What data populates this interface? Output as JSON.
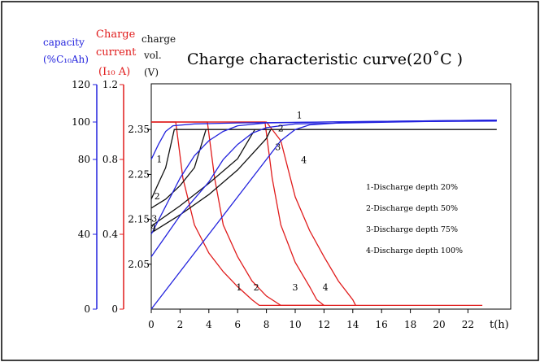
{
  "title": "Charge characteristic curve(20˚C )",
  "axes": {
    "capacity": {
      "label1": "capacity",
      "label2": "(%C₁₀Ah)",
      "color": "#2222dd",
      "ticks": [
        "0",
        "40",
        "80",
        "100",
        "120"
      ]
    },
    "current": {
      "label1": "Charge",
      "label2": "current",
      "label3": "(I₁₀ A)",
      "color": "#e01b1b",
      "ticks": [
        "0",
        "0.4",
        "0.8",
        "1.2"
      ]
    },
    "voltage": {
      "label1": "charge",
      "label2": "vol.",
      "label3": "(V)",
      "color": "#111111",
      "ticks": [
        "2.05",
        "2.15",
        "2.25",
        "2.35"
      ]
    },
    "time": {
      "label": "t(h)",
      "ticks": [
        "0",
        "2",
        "4",
        "6",
        "8",
        "10",
        "12",
        "14",
        "16",
        "18",
        "20",
        "22"
      ]
    }
  },
  "legend": [
    {
      "num": "1",
      "text": "Discharge depth 20%"
    },
    {
      "num": "2",
      "text": "Discharge depth 50%"
    },
    {
      "num": "3",
      "text": "Discharge depth 75%"
    },
    {
      "num": "4",
      "text": "Discharge depth 100%"
    }
  ],
  "curve_labels": {
    "capacity": [
      "1",
      "2",
      "3",
      "4"
    ],
    "current": [
      "1",
      "2",
      "3",
      "4"
    ],
    "voltage": [
      "1",
      "2",
      "3",
      "4"
    ]
  },
  "chart_data": {
    "type": "line",
    "title": "Charge characteristic curve(20˚C )",
    "xlabel": "t(h)",
    "xlim": [
      0,
      24
    ],
    "colors": {
      "capacity": "#2222dd",
      "current": "#e01b1b",
      "voltage": "#111111"
    },
    "axes_ranges": {
      "capacity_pct": [
        0,
        120
      ],
      "current_I10A": [
        0,
        1.2
      ],
      "voltage_V": [
        1.95,
        2.45
      ]
    },
    "capacity_series": [
      {
        "name": "1",
        "points": [
          [
            0,
            80
          ],
          [
            0.5,
            88
          ],
          [
            1,
            95
          ],
          [
            1.5,
            98
          ],
          [
            3,
            99
          ],
          [
            6,
            99.5
          ],
          [
            12,
            100
          ],
          [
            24,
            101
          ]
        ]
      },
      {
        "name": "2",
        "points": [
          [
            0,
            40
          ],
          [
            1,
            55
          ],
          [
            2,
            70
          ],
          [
            3,
            82
          ],
          [
            4,
            90
          ],
          [
            5,
            95
          ],
          [
            6,
            98
          ],
          [
            8,
            99.5
          ],
          [
            12,
            100
          ],
          [
            24,
            101
          ]
        ]
      },
      {
        "name": "3",
        "points": [
          [
            0,
            28
          ],
          [
            2,
            50
          ],
          [
            4,
            68
          ],
          [
            5,
            80
          ],
          [
            6,
            88
          ],
          [
            7,
            94
          ],
          [
            8,
            97
          ],
          [
            10,
            99
          ],
          [
            24,
            101
          ]
        ]
      },
      {
        "name": "4",
        "points": [
          [
            0,
            0
          ],
          [
            2,
            20
          ],
          [
            4,
            40
          ],
          [
            6,
            60
          ],
          [
            7,
            70
          ],
          [
            8,
            80
          ],
          [
            9,
            90
          ],
          [
            10,
            96
          ],
          [
            11,
            98.5
          ],
          [
            14,
            100
          ],
          [
            24,
            100.5
          ]
        ]
      }
    ],
    "current_series": [
      {
        "name": "1",
        "points": [
          [
            0,
            1.0
          ],
          [
            1.7,
            1.0
          ],
          [
            2.2,
            0.7
          ],
          [
            3,
            0.45
          ],
          [
            4,
            0.3
          ],
          [
            5,
            0.2
          ],
          [
            6,
            0.12
          ],
          [
            7,
            0.05
          ],
          [
            7.5,
            0.02
          ],
          [
            12,
            0.02
          ],
          [
            23,
            0.02
          ]
        ]
      },
      {
        "name": "2",
        "points": [
          [
            0,
            1.0
          ],
          [
            3.9,
            1.0
          ],
          [
            4.4,
            0.7
          ],
          [
            5,
            0.45
          ],
          [
            6,
            0.28
          ],
          [
            7,
            0.15
          ],
          [
            8,
            0.07
          ],
          [
            9,
            0.02
          ],
          [
            12,
            0.02
          ]
        ]
      },
      {
        "name": "3",
        "points": [
          [
            0,
            1.0
          ],
          [
            7.9,
            1.0
          ],
          [
            8.4,
            0.7
          ],
          [
            9,
            0.45
          ],
          [
            10,
            0.25
          ],
          [
            11,
            0.12
          ],
          [
            11.5,
            0.05
          ],
          [
            12,
            0.02
          ]
        ]
      },
      {
        "name": "4",
        "points": [
          [
            0,
            1.0
          ],
          [
            8,
            1.0
          ],
          [
            9,
            0.9
          ],
          [
            10,
            0.6
          ],
          [
            11,
            0.42
          ],
          [
            12,
            0.28
          ],
          [
            13,
            0.15
          ],
          [
            14,
            0.05
          ],
          [
            14.2,
            0.02
          ]
        ]
      }
    ],
    "voltage_series": [
      {
        "name": "1",
        "points": [
          [
            0,
            2.195
          ],
          [
            0.5,
            2.23
          ],
          [
            1,
            2.265
          ],
          [
            1.6,
            2.35
          ],
          [
            24,
            2.35
          ]
        ]
      },
      {
        "name": "2",
        "points": [
          [
            0,
            2.175
          ],
          [
            1,
            2.195
          ],
          [
            2,
            2.225
          ],
          [
            3,
            2.265
          ],
          [
            3.8,
            2.35
          ]
        ]
      },
      {
        "name": "3",
        "points": [
          [
            0,
            2.135
          ],
          [
            2,
            2.18
          ],
          [
            4,
            2.23
          ],
          [
            6,
            2.285
          ],
          [
            7.2,
            2.35
          ]
        ]
      },
      {
        "name": "4",
        "points": [
          [
            0,
            2.12
          ],
          [
            2,
            2.16
          ],
          [
            4,
            2.205
          ],
          [
            6,
            2.26
          ],
          [
            8,
            2.33
          ],
          [
            8.3,
            2.35
          ]
        ]
      }
    ],
    "legend": [
      "1-Discharge depth 20%",
      "2-Discharge depth 50%",
      "3-Discharge depth 75%",
      "4-Discharge depth 100%"
    ]
  }
}
